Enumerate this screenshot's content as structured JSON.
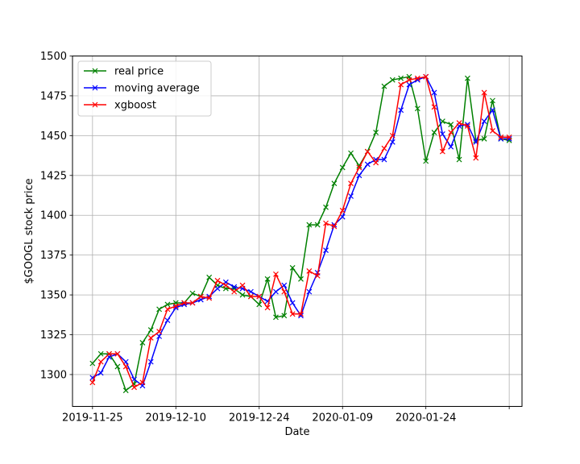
{
  "chart_data": {
    "type": "line",
    "xlabel": "Date",
    "ylabel": "$GOOGL stock price",
    "ylim": [
      1280,
      1500
    ],
    "yticks": [
      1300,
      1325,
      1350,
      1375,
      1400,
      1425,
      1450,
      1475,
      1500
    ],
    "xticks": [
      {
        "label": "2019-11-25",
        "index": 0
      },
      {
        "label": "2019-12-10",
        "index": 15
      },
      {
        "label": "2019-12-24",
        "index": 30
      },
      {
        "label": "2020-01-09",
        "index": 45
      },
      {
        "label": "2020-01-24",
        "index": 60
      },
      {
        "label": "",
        "index": 75
      }
    ],
    "xlim": [
      -3.6,
      77.3
    ],
    "x_dates": [
      "2019-11-25",
      "2019-11-26",
      "2019-11-27",
      "2019-11-29",
      "2019-12-02",
      "2019-12-03",
      "2019-12-04",
      "2019-12-05",
      "2019-12-06",
      "2019-12-09",
      "2019-12-10",
      "2019-12-11",
      "2019-12-12",
      "2019-12-13",
      "2019-12-16",
      "2019-12-17",
      "2019-12-18",
      "2019-12-19",
      "2019-12-20",
      "2019-12-23",
      "2019-12-24",
      "2019-12-26",
      "2019-12-27",
      "2019-12-30",
      "2019-12-31",
      "2020-01-02",
      "2020-01-03",
      "2020-01-06",
      "2020-01-07",
      "2020-01-08",
      "2020-01-09",
      "2020-01-10",
      "2020-01-13",
      "2020-01-14",
      "2020-01-15",
      "2020-01-16",
      "2020-01-17",
      "2020-01-21",
      "2020-01-22",
      "2020-01-23",
      "2020-01-24",
      "2020-01-27",
      "2020-01-28",
      "2020-01-29",
      "2020-01-30",
      "2020-01-31",
      "2020-02-03",
      "2020-02-04",
      "2020-02-05",
      "2020-02-06",
      "2020-02-07"
    ],
    "x_index": [
      0,
      1.5,
      3,
      4.5,
      6,
      7.5,
      9,
      10.5,
      12,
      13.5,
      15,
      16.5,
      18,
      19.5,
      21,
      22.5,
      24,
      25.5,
      27,
      28.5,
      30,
      31.5,
      33,
      34.5,
      36,
      37.5,
      39,
      40.5,
      42,
      43.5,
      45,
      46.5,
      48,
      49.5,
      51,
      52.5,
      54,
      55.5,
      57,
      58.5,
      60,
      61.5,
      63,
      64.5,
      66,
      67.5,
      69,
      70.5,
      72,
      73.5,
      75
    ],
    "grid": true,
    "legend_position": "upper-left",
    "series": [
      {
        "name": "real price",
        "color": "#008000",
        "values": [
          1307,
          1313,
          1313,
          1305,
          1290,
          1294,
          1320,
          1328,
          1341,
          1344,
          1345,
          1345,
          1351,
          1349,
          1361,
          1356,
          1354,
          1354,
          1350,
          1349,
          1344,
          1360,
          1336,
          1337,
          1367,
          1360,
          1394,
          1394,
          1405,
          1420,
          1430,
          1439,
          1431,
          1440,
          1452,
          1481,
          1485,
          1486,
          1487,
          1467,
          1434,
          1452,
          1459,
          1457,
          1435,
          1486,
          1447,
          1448,
          1472,
          1448,
          1447
        ]
      },
      {
        "name": "moving average",
        "color": "#0000ff",
        "values": [
          1298,
          1301,
          1311,
          1313,
          1308,
          1297,
          1293,
          1308,
          1324,
          1334,
          1342,
          1344,
          1345,
          1347,
          1349,
          1354,
          1358,
          1355,
          1354,
          1352,
          1349,
          1346,
          1352,
          1356,
          1345,
          1337,
          1352,
          1364,
          1378,
          1394,
          1399,
          1412,
          1425,
          1432,
          1435,
          1435,
          1446,
          1466,
          1482,
          1485,
          1487,
          1477,
          1451,
          1443,
          1456,
          1457,
          1446,
          1459,
          1466,
          1448,
          1448
        ]
      },
      {
        "name": "xgboost",
        "color": "#ff0000",
        "values": [
          1295,
          1308,
          1313,
          1313,
          1305,
          1292,
          1295,
          1323,
          1327,
          1341,
          1343,
          1345,
          1345,
          1349,
          1348,
          1359,
          1356,
          1352,
          1356,
          1349,
          1349,
          1342,
          1363,
          1352,
          1338,
          1338,
          1365,
          1362,
          1395,
          1393,
          1403,
          1420,
          1430,
          1440,
          1433,
          1442,
          1450,
          1482,
          1485,
          1486,
          1487,
          1468,
          1440,
          1452,
          1458,
          1456,
          1436,
          1477,
          1453,
          1449,
          1449
        ]
      }
    ]
  }
}
